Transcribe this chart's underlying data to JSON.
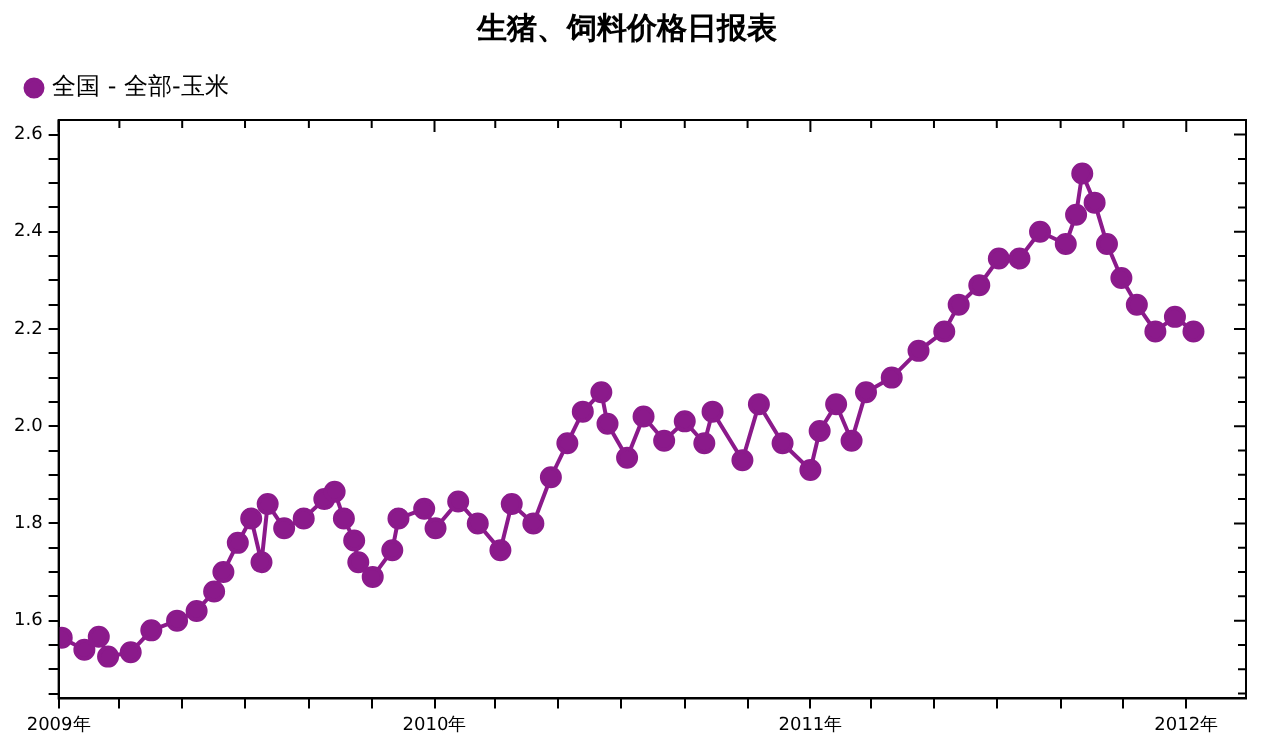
{
  "chart_data": {
    "type": "line",
    "title": "生猪、饲料价格日报表",
    "x": [
      "2009-01-04",
      "2009-01-26",
      "2009-02-09",
      "2009-02-18",
      "2009-03-12",
      "2009-04-01",
      "2009-04-26",
      "2009-05-15",
      "2009-06-01",
      "2009-06-10",
      "2009-06-24",
      "2009-07-07",
      "2009-07-17",
      "2009-07-23",
      "2009-08-08",
      "2009-08-27",
      "2009-09-16",
      "2009-09-26",
      "2009-10-05",
      "2009-10-15",
      "2009-10-19",
      "2009-11-02",
      "2009-11-21",
      "2009-11-27",
      "2009-12-22",
      "2010-01-02",
      "2010-01-24",
      "2010-02-12",
      "2010-03-06",
      "2010-03-17",
      "2010-04-07",
      "2010-04-24",
      "2010-05-10",
      "2010-05-25",
      "2010-06-12",
      "2010-06-18",
      "2010-07-07",
      "2010-07-23",
      "2010-08-12",
      "2010-09-01",
      "2010-09-20",
      "2010-09-28",
      "2010-10-27",
      "2010-11-12",
      "2010-12-05",
      "2011-01-01",
      "2011-01-10",
      "2011-01-26",
      "2011-02-10",
      "2011-02-24",
      "2011-03-21",
      "2011-04-16",
      "2011-05-11",
      "2011-05-25",
      "2011-06-14",
      "2011-07-03",
      "2011-07-23",
      "2011-08-12",
      "2011-09-06",
      "2011-09-16",
      "2011-09-22",
      "2011-10-04",
      "2011-10-16",
      "2011-10-30",
      "2011-11-14",
      "2011-12-02",
      "2011-12-21",
      "2012-01-08"
    ],
    "series": [
      {
        "name": "全国 - 全部-玉米",
        "color": "#8b1a8b",
        "values": [
          1.565,
          1.54,
          1.567,
          1.526,
          1.535,
          1.58,
          1.6,
          1.62,
          1.66,
          1.7,
          1.76,
          1.81,
          1.72,
          1.84,
          1.79,
          1.81,
          1.85,
          1.865,
          1.81,
          1.765,
          1.72,
          1.69,
          1.745,
          1.81,
          1.83,
          1.79,
          1.845,
          1.8,
          1.745,
          1.84,
          1.8,
          1.895,
          1.965,
          2.03,
          2.07,
          2.005,
          1.935,
          2.02,
          1.97,
          2.01,
          1.965,
          2.03,
          1.93,
          2.045,
          1.965,
          1.91,
          1.99,
          2.045,
          1.97,
          2.07,
          2.1,
          2.155,
          2.195,
          2.25,
          2.29,
          2.345,
          2.345,
          2.4,
          2.375,
          2.435,
          2.52,
          2.46,
          2.375,
          2.305,
          2.25,
          2.195,
          2.225,
          2.195
        ]
      }
    ],
    "xlim": [
      "2009-01-01",
      "2012-02-28"
    ],
    "xticks": [
      {
        "value": "2009-01-01",
        "label": "2009年"
      },
      {
        "value": "2009-03-01",
        "label": null
      },
      {
        "value": "2009-05-01",
        "label": null
      },
      {
        "value": "2009-07-01",
        "label": null
      },
      {
        "value": "2009-09-01",
        "label": null
      },
      {
        "value": "2009-11-01",
        "label": null
      },
      {
        "value": "2010-01-01",
        "label": "2010年"
      },
      {
        "value": "2010-03-01",
        "label": null
      },
      {
        "value": "2010-05-01",
        "label": null
      },
      {
        "value": "2010-07-01",
        "label": null
      },
      {
        "value": "2010-09-01",
        "label": null
      },
      {
        "value": "2010-11-01",
        "label": null
      },
      {
        "value": "2011-01-01",
        "label": "2011年"
      },
      {
        "value": "2011-03-01",
        "label": null
      },
      {
        "value": "2011-05-01",
        "label": null
      },
      {
        "value": "2011-07-01",
        "label": null
      },
      {
        "value": "2011-09-01",
        "label": null
      },
      {
        "value": "2011-11-01",
        "label": null
      },
      {
        "value": "2012-01-01",
        "label": "2012年"
      }
    ],
    "ylim": [
      1.44,
      2.63
    ],
    "yticks": [
      {
        "value": 1.45,
        "label": null
      },
      {
        "value": 1.5,
        "label": null
      },
      {
        "value": 1.55,
        "label": null
      },
      {
        "value": 1.6,
        "label": "1.6"
      },
      {
        "value": 1.65,
        "label": null
      },
      {
        "value": 1.7,
        "label": null
      },
      {
        "value": 1.75,
        "label": null
      },
      {
        "value": 1.8,
        "label": "1.8"
      },
      {
        "value": 1.85,
        "label": null
      },
      {
        "value": 1.9,
        "label": null
      },
      {
        "value": 1.95,
        "label": null
      },
      {
        "value": 2.0,
        "label": "2.0"
      },
      {
        "value": 2.05,
        "label": null
      },
      {
        "value": 2.1,
        "label": null
      },
      {
        "value": 2.15,
        "label": null
      },
      {
        "value": 2.2,
        "label": "2.2"
      },
      {
        "value": 2.25,
        "label": null
      },
      {
        "value": 2.3,
        "label": null
      },
      {
        "value": 2.35,
        "label": null
      },
      {
        "value": 2.4,
        "label": "2.4"
      },
      {
        "value": 2.45,
        "label": null
      },
      {
        "value": 2.5,
        "label": null
      },
      {
        "value": 2.55,
        "label": null
      },
      {
        "value": 2.6,
        "label": "2.6"
      }
    ],
    "grid": false,
    "legend": "top left",
    "marker": "circle",
    "line_style": "solid"
  }
}
